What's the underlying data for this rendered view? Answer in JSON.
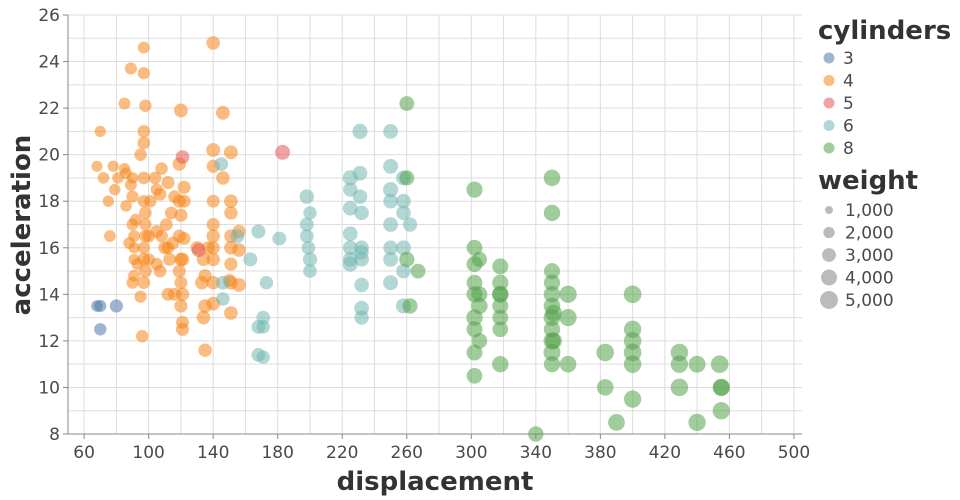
{
  "chart_data": {
    "type": "scatter",
    "xlabel": "displacement",
    "ylabel": "acceleration",
    "xlim": [
      50,
      505
    ],
    "ylim": [
      8,
      26
    ],
    "x_ticks": [
      60,
      100,
      140,
      180,
      220,
      260,
      300,
      340,
      380,
      420,
      460,
      500
    ],
    "y_ticks": [
      8,
      10,
      12,
      14,
      16,
      18,
      20,
      22,
      24,
      26
    ],
    "grid": true,
    "point_opacity": 0.55,
    "color_legend": {
      "title": "cylinders",
      "position": "top-right",
      "entries": [
        {
          "label": "3",
          "color": "#4c78a8"
        },
        {
          "label": "4",
          "color": "#f58518"
        },
        {
          "label": "5",
          "color": "#e45756"
        },
        {
          "label": "6",
          "color": "#72b7b2"
        },
        {
          "label": "8",
          "color": "#54a24b"
        }
      ]
    },
    "size_legend": {
      "title": "weight",
      "color": "#aaaaaa",
      "entries": [
        {
          "label": "1,000",
          "value": 1000
        },
        {
          "label": "2,000",
          "value": 2000
        },
        {
          "label": "3,000",
          "value": 3000
        },
        {
          "label": "4,000",
          "value": 4000
        },
        {
          "label": "5,000",
          "value": 5000
        }
      ]
    },
    "series": [
      {
        "name": "3",
        "points": [
          [
            68,
            13.5,
            2100
          ],
          [
            70,
            13.5,
            2300
          ],
          [
            70,
            12.5,
            2400
          ],
          [
            80,
            13.5,
            2700
          ]
        ]
      },
      {
        "name": "4",
        "points": [
          [
            70,
            21.0,
            2000
          ],
          [
            68,
            19.5,
            1900
          ],
          [
            72,
            19.0,
            2100
          ],
          [
            75,
            18.0,
            2000
          ],
          [
            76,
            16.5,
            2100
          ],
          [
            78,
            19.5,
            2000
          ],
          [
            79,
            18.5,
            2050
          ],
          [
            81,
            19.0,
            2100
          ],
          [
            85,
            22.2,
            2200
          ],
          [
            86,
            19.2,
            2150
          ],
          [
            89,
            18.7,
            2250
          ],
          [
            90,
            17.0,
            2250
          ],
          [
            91,
            16.0,
            2000
          ],
          [
            89,
            23.7,
            2300
          ],
          [
            97,
            23.5,
            2300
          ],
          [
            97,
            24.6,
            2200
          ],
          [
            98,
            22.1,
            2400
          ],
          [
            97,
            21.0,
            2500
          ],
          [
            97,
            20.5,
            2500
          ],
          [
            95,
            20.0,
            2400
          ],
          [
            90,
            18.2,
            2300
          ],
          [
            90,
            14.5,
            2300
          ],
          [
            91,
            16.5,
            2200
          ],
          [
            91,
            14.8,
            2200
          ],
          [
            97,
            19.0,
            2500
          ],
          [
            97,
            18.0,
            2400
          ],
          [
            98,
            17.5,
            2500
          ],
          [
            98,
            16.5,
            2500
          ],
          [
            97,
            15.5,
            2600
          ],
          [
            97,
            14.5,
            2500
          ],
          [
            98,
            15.0,
            2600
          ],
          [
            97,
            16.0,
            2400
          ],
          [
            100,
            16.5,
            2500
          ],
          [
            100,
            15.5,
            2400
          ],
          [
            96,
            12.2,
            2400
          ],
          [
            85,
            19.4,
            2000
          ],
          [
            88,
            16.2,
            2200
          ],
          [
            92,
            17.2,
            2300
          ],
          [
            93,
            15.3,
            2200
          ],
          [
            95,
            13.9,
            2300
          ],
          [
            101,
            18.0,
            2400
          ],
          [
            104,
            19.0,
            2500
          ],
          [
            105,
            16.7,
            2600
          ],
          [
            105,
            15.3,
            2400
          ],
          [
            107,
            18.3,
            2600
          ],
          [
            108,
            16.5,
            2500
          ],
          [
            108,
            19.4,
            2400
          ],
          [
            110,
            16.0,
            2600
          ],
          [
            111,
            17.0,
            2500
          ],
          [
            112,
            18.8,
            2700
          ],
          [
            113,
            15.5,
            2600
          ],
          [
            114,
            17.5,
            2500
          ],
          [
            116,
            14.0,
            2600
          ],
          [
            115,
            16.2,
            2600
          ],
          [
            119,
            19.6,
            2800
          ],
          [
            119,
            18.0,
            2700
          ],
          [
            119,
            16.5,
            2700
          ],
          [
            119,
            15.0,
            2700
          ],
          [
            120,
            21.9,
            3000
          ],
          [
            120,
            17.4,
            2700
          ],
          [
            120,
            15.5,
            2800
          ],
          [
            120,
            13.5,
            2700
          ],
          [
            121,
            15.5,
            2800
          ],
          [
            121,
            14.0,
            2800
          ],
          [
            121,
            12.5,
            2700
          ],
          [
            121,
            12.8,
            2600
          ],
          [
            122,
            18.6,
            2700
          ],
          [
            122,
            16.4,
            2600
          ],
          [
            116,
            18.2,
            2500
          ],
          [
            112,
            14.0,
            2600
          ],
          [
            133,
            14.5,
            2900
          ],
          [
            134,
            15.5,
            2800
          ],
          [
            135,
            14.8,
            2700
          ],
          [
            135,
            13.5,
            2900
          ],
          [
            135,
            11.6,
            2800
          ],
          [
            137,
            16.0,
            2700
          ],
          [
            140,
            24.8,
            2900
          ],
          [
            140,
            20.2,
            3000
          ],
          [
            140,
            19.5,
            2700
          ],
          [
            140,
            18.0,
            2600
          ],
          [
            140,
            17.0,
            2700
          ],
          [
            140,
            16.5,
            2800
          ],
          [
            140,
            16.0,
            2700
          ],
          [
            140,
            15.5,
            2800
          ],
          [
            140,
            14.5,
            2800
          ],
          [
            140,
            13.6,
            2900
          ],
          [
            146,
            21.8,
            3000
          ],
          [
            146,
            19.0,
            2900
          ],
          [
            151,
            20.1,
            3000
          ],
          [
            151,
            18.0,
            2900
          ],
          [
            151,
            17.5,
            2800
          ],
          [
            151,
            16.5,
            2800
          ],
          [
            151,
            16.0,
            2900
          ],
          [
            151,
            14.5,
            3000
          ],
          [
            151,
            13.2,
            2900
          ],
          [
            156,
            15.9,
            2900
          ],
          [
            156,
            14.4,
            3000
          ],
          [
            156,
            16.7,
            2800
          ],
          [
            150,
            14.6,
            2600
          ],
          [
            151,
            15.3,
            2700
          ],
          [
            122,
            18.0,
            2600
          ],
          [
            98,
            17.0,
            2400
          ],
          [
            91,
            15.5,
            2000
          ],
          [
            112,
            16.0,
            2500
          ],
          [
            120,
            14.5,
            2600
          ],
          [
            107,
            15.0,
            2500
          ],
          [
            134,
            13.0,
            2900
          ],
          [
            130,
            16.0,
            2800
          ],
          [
            105,
            18.5,
            2300
          ],
          [
            86,
            17.8,
            2100
          ],
          [
            90,
            19.0,
            2100
          ]
        ]
      },
      {
        "name": "5",
        "points": [
          [
            121,
            19.9,
            2900
          ],
          [
            131,
            15.9,
            3000
          ],
          [
            183,
            20.1,
            3500
          ]
        ]
      },
      {
        "name": "6",
        "points": [
          [
            145,
            19.6,
            2900
          ],
          [
            146,
            14.5,
            3000
          ],
          [
            146,
            13.8,
            2800
          ],
          [
            155,
            16.5,
            3000
          ],
          [
            163,
            15.5,
            3100
          ],
          [
            168,
            16.7,
            3100
          ],
          [
            168,
            12.6,
            3000
          ],
          [
            171,
            13.0,
            2900
          ],
          [
            171,
            12.6,
            2800
          ],
          [
            173,
            14.5,
            2800
          ],
          [
            168,
            11.4,
            3000
          ],
          [
            171,
            11.3,
            2800
          ],
          [
            181,
            16.4,
            3000
          ],
          [
            198,
            18.2,
            3300
          ],
          [
            198,
            17.0,
            3000
          ],
          [
            198,
            16.5,
            2900
          ],
          [
            199,
            16.0,
            2900
          ],
          [
            200,
            15.5,
            3200
          ],
          [
            200,
            15.0,
            2900
          ],
          [
            200,
            17.5,
            2800
          ],
          [
            225,
            17.7,
            3400
          ],
          [
            225,
            16.6,
            3400
          ],
          [
            225,
            15.5,
            3400
          ],
          [
            225,
            18.5,
            3200
          ],
          [
            225,
            19.0,
            3600
          ],
          [
            225,
            16.0,
            3400
          ],
          [
            231,
            21.0,
            3600
          ],
          [
            231,
            19.2,
            3400
          ],
          [
            231,
            18.2,
            3300
          ],
          [
            232,
            17.5,
            3300
          ],
          [
            232,
            16.0,
            3300
          ],
          [
            232,
            15.8,
            3200
          ],
          [
            232,
            14.4,
            3300
          ],
          [
            232,
            13.4,
            3400
          ],
          [
            232,
            13.0,
            3200
          ],
          [
            250,
            21.0,
            3400
          ],
          [
            250,
            19.5,
            3500
          ],
          [
            250,
            18.5,
            3600
          ],
          [
            250,
            18.0,
            3300
          ],
          [
            250,
            17.0,
            3400
          ],
          [
            250,
            16.0,
            3300
          ],
          [
            250,
            15.5,
            3400
          ],
          [
            250,
            14.5,
            3500
          ],
          [
            258,
            15.0,
            3300
          ],
          [
            258,
            16.0,
            3500
          ],
          [
            258,
            19.0,
            3400
          ],
          [
            258,
            17.5,
            3300
          ],
          [
            258,
            13.5,
            3600
          ],
          [
            262,
            17.0,
            3200
          ],
          [
            258,
            18.0,
            3300
          ],
          [
            232,
            15.5,
            3300
          ],
          [
            225,
            15.3,
            3600
          ]
        ]
      },
      {
        "name": "8",
        "points": [
          [
            260,
            22.2,
            3400
          ],
          [
            260,
            19.0,
            3500
          ],
          [
            260,
            15.5,
            3600
          ],
          [
            262,
            13.5,
            3600
          ],
          [
            267,
            15.0,
            3400
          ],
          [
            302,
            18.5,
            4100
          ],
          [
            302,
            16.0,
            3900
          ],
          [
            302,
            15.3,
            4000
          ],
          [
            302,
            14.5,
            3900
          ],
          [
            302,
            14.0,
            4000
          ],
          [
            302,
            13.0,
            4200
          ],
          [
            302,
            12.5,
            4000
          ],
          [
            302,
            11.5,
            4000
          ],
          [
            302,
            10.5,
            3800
          ],
          [
            305,
            15.5,
            3600
          ],
          [
            305,
            14.0,
            3900
          ],
          [
            305,
            13.5,
            4200
          ],
          [
            305,
            12.0,
            3800
          ],
          [
            318,
            15.2,
            4000
          ],
          [
            318,
            14.5,
            4100
          ],
          [
            318,
            14.0,
            3900
          ],
          [
            318,
            13.5,
            4000
          ],
          [
            318,
            13.0,
            3900
          ],
          [
            318,
            12.5,
            3800
          ],
          [
            318,
            11.0,
            4200
          ],
          [
            318,
            14.0,
            4400
          ],
          [
            340,
            8.0,
            3700
          ],
          [
            350,
            19.0,
            4300
          ],
          [
            350,
            17.5,
            4200
          ],
          [
            350,
            15.0,
            4000
          ],
          [
            350,
            14.5,
            4100
          ],
          [
            350,
            14.0,
            4300
          ],
          [
            350,
            13.5,
            4300
          ],
          [
            350,
            13.0,
            4400
          ],
          [
            350,
            12.5,
            4200
          ],
          [
            350,
            12.0,
            4500
          ],
          [
            350,
            11.5,
            4500
          ],
          [
            350,
            11.0,
            4100
          ],
          [
            351,
            12.0,
            4300
          ],
          [
            351,
            13.2,
            4400
          ],
          [
            360,
            14.0,
            4700
          ],
          [
            360,
            13.0,
            4600
          ],
          [
            360,
            11.0,
            4300
          ],
          [
            383,
            11.5,
            4800
          ],
          [
            383,
            10.0,
            4300
          ],
          [
            390,
            8.5,
            4400
          ],
          [
            400,
            14.0,
            4900
          ],
          [
            400,
            12.5,
            4700
          ],
          [
            400,
            12.0,
            4800
          ],
          [
            400,
            11.5,
            4900
          ],
          [
            400,
            11.0,
            4800
          ],
          [
            400,
            9.5,
            4700
          ],
          [
            429,
            11.5,
            4800
          ],
          [
            429,
            11.0,
            4700
          ],
          [
            429,
            10.0,
            4800
          ],
          [
            440,
            11.0,
            4500
          ],
          [
            440,
            8.5,
            4700
          ],
          [
            454,
            11.0,
            4900
          ],
          [
            455,
            10.0,
            4400
          ],
          [
            455,
            9.0,
            4700
          ],
          [
            455,
            10.0,
            4600
          ]
        ]
      }
    ]
  }
}
